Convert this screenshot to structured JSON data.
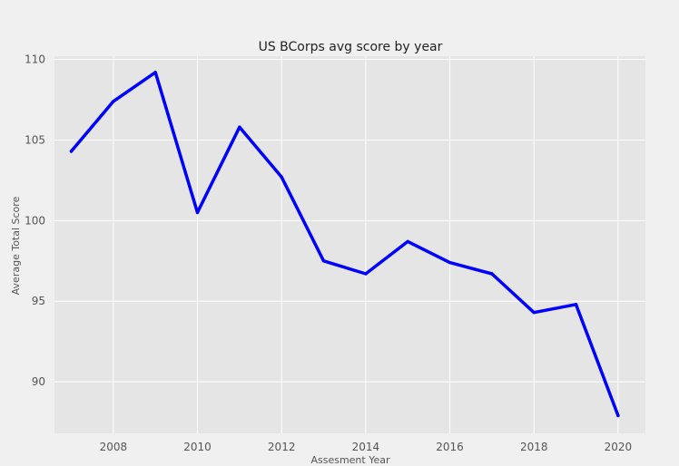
{
  "chart_data": {
    "type": "line",
    "title": "US BCorps avg score by year",
    "xlabel": "Assesment Year",
    "ylabel": "Average Total Score",
    "xlim": [
      2006.6,
      2020.65
    ],
    "ylim": [
      86.8,
      110.2
    ],
    "xticks": [
      "2008",
      "2010",
      "2012",
      "2014",
      "2016",
      "2018",
      "2020"
    ],
    "yticks": [
      "90",
      "95",
      "100",
      "105",
      "110"
    ],
    "grid": true,
    "series": [
      {
        "x": [
          2007,
          2008,
          2009,
          2010,
          2011,
          2012,
          2013,
          2014,
          2015,
          2016,
          2017,
          2018,
          2019,
          2020
        ],
        "values": [
          104.3,
          107.4,
          109.2,
          100.5,
          105.8,
          102.7,
          97.5,
          96.7,
          98.7,
          97.4,
          96.7,
          94.3,
          94.8,
          87.9
        ]
      }
    ],
    "colors": {
      "line": "#0000ff",
      "plot_background": "#e5e5e5",
      "grid": "#ffffff",
      "page_background": "#f0f0f0"
    }
  }
}
